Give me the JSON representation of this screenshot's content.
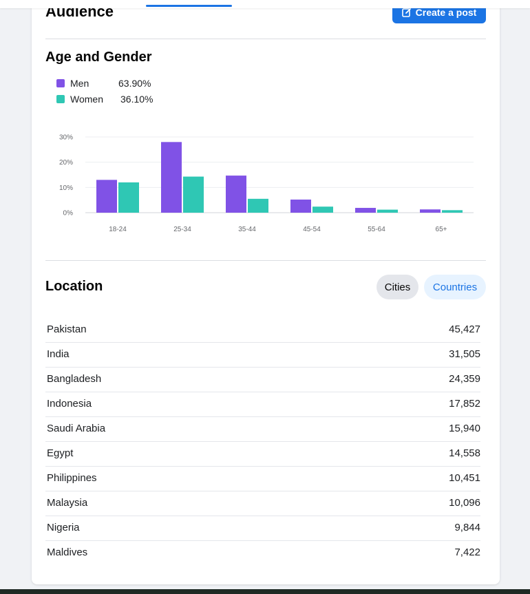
{
  "header": {
    "title": "Audience",
    "create_post_label": "Create a post"
  },
  "age_gender": {
    "title": "Age and Gender",
    "legend": [
      {
        "label": "Men",
        "value": "63.90%",
        "color": "#8052e6"
      },
      {
        "label": "Women",
        "value": "36.10%",
        "color": "#2fc7b4"
      }
    ]
  },
  "chart_data": {
    "type": "bar",
    "categories": [
      "18-24",
      "25-34",
      "35-44",
      "45-54",
      "55-64",
      "65+"
    ],
    "series": [
      {
        "name": "Men",
        "values": [
          13,
          28,
          14.7,
          5.2,
          1.9,
          1.3
        ]
      },
      {
        "name": "Women",
        "values": [
          12,
          14.3,
          5.5,
          2.4,
          1.2,
          1.0
        ]
      }
    ],
    "yticks": [
      "0%",
      "10%",
      "20%",
      "30%"
    ],
    "ylim": [
      0,
      30
    ],
    "grid": true
  },
  "location": {
    "title": "Location",
    "filter_cities": "Cities",
    "filter_countries": "Countries",
    "rows": [
      {
        "name": "Pakistan",
        "count": "45,427"
      },
      {
        "name": "India",
        "count": "31,505"
      },
      {
        "name": "Bangladesh",
        "count": "24,359"
      },
      {
        "name": "Indonesia",
        "count": "17,852"
      },
      {
        "name": "Saudi Arabia",
        "count": "15,940"
      },
      {
        "name": "Egypt",
        "count": "14,558"
      },
      {
        "name": "Philippines",
        "count": "10,451"
      },
      {
        "name": "Malaysia",
        "count": "10,096"
      },
      {
        "name": "Nigeria",
        "count": "9,844"
      },
      {
        "name": "Maldives",
        "count": "7,422"
      }
    ]
  }
}
